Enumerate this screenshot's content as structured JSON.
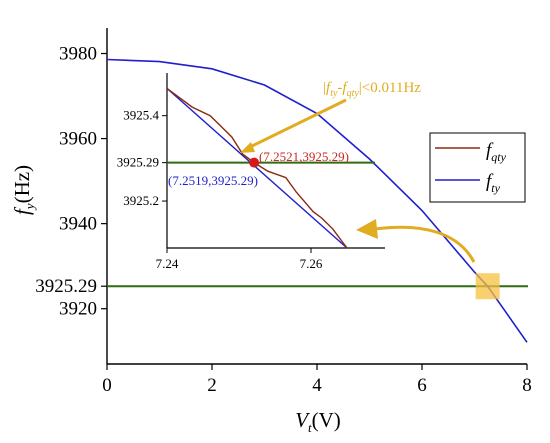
{
  "chart_data": {
    "type": "line",
    "xlabel": {
      "main": "V",
      "sub": "t",
      "unit": "(V)"
    },
    "ylabel": {
      "main": "f",
      "sub": "y",
      "unit": "(Hz)"
    },
    "xlim": [
      0,
      8
    ],
    "ylim": [
      3907,
      3986
    ],
    "xticks": [
      "0",
      "2",
      "4",
      "6",
      "8"
    ],
    "yticks": [
      "3920",
      "3925.29",
      "3940",
      "3960",
      "3980"
    ],
    "hline": {
      "y": 3925.29,
      "color": "#2e6b12"
    },
    "series": [
      {
        "name": "f_ty",
        "color": "#1f1fd0",
        "x": [
          0,
          1,
          2,
          3,
          4,
          5,
          6,
          7,
          7.25,
          8
        ],
        "y": [
          3978.6,
          3978.1,
          3976.4,
          3972.6,
          3965.9,
          3955.2,
          3943.1,
          3928.6,
          3925.29,
          3912.1
        ]
      }
    ],
    "highlight": {
      "x": 7.25,
      "y": 3925.29,
      "color": "#f5c040"
    },
    "legend": {
      "position": "right",
      "entries": [
        {
          "main": "f",
          "sub": "qty",
          "color": "#8b2a10"
        },
        {
          "main": "f",
          "sub": "ty",
          "color": "#1f1fd0"
        }
      ]
    },
    "inset": {
      "xlim": [
        7.24,
        7.2725
      ],
      "ylim": [
        3925.09,
        3925.5
      ],
      "xticks": [
        "7.24",
        "7.26"
      ],
      "yticks": [
        "3925.2",
        "3925.29",
        "3925.4"
      ],
      "hline": {
        "y": 3925.29
      },
      "series": [
        {
          "name": "f_ty",
          "x": [
            7.24,
            7.265
          ],
          "y": [
            3925.464,
            3925.09
          ]
        },
        {
          "name": "f_qty",
          "x": [
            7.24,
            7.2435,
            7.246,
            7.249,
            7.2505,
            7.2521,
            7.254,
            7.2565,
            7.258,
            7.2603,
            7.2615,
            7.263,
            7.265
          ],
          "y": [
            3925.464,
            3925.42,
            3925.4,
            3925.35,
            3925.31,
            3925.29,
            3925.27,
            3925.255,
            3925.22,
            3925.175,
            3925.16,
            3925.135,
            3925.09
          ]
        }
      ],
      "point": {
        "x": 7.2521,
        "y": 3925.29,
        "color": "#d81818"
      },
      "labels": [
        {
          "text": "(7.2521,3925.29)",
          "color": "#c8281e"
        },
        {
          "text": "(7.2519,3925.29)",
          "color": "#1f1fd0"
        }
      ]
    },
    "annotation": {
      "text": "|f_ty-f_qty|<0.011Hz",
      "color": "#e0ac20"
    }
  }
}
